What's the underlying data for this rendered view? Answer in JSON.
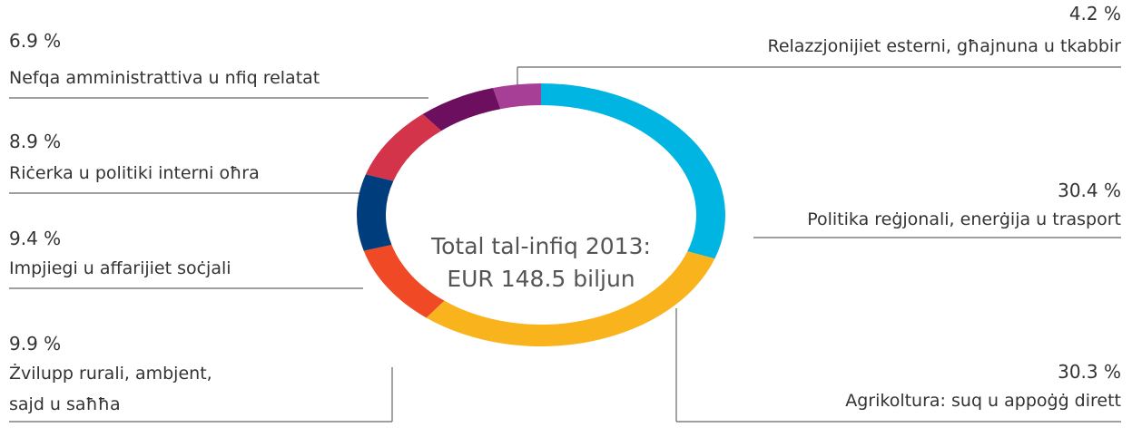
{
  "chart_data": {
    "type": "pie",
    "donut": true,
    "center_text": [
      "Total tal-infiq 2013:",
      "EUR 148.5 biljun"
    ],
    "categories": [
      [
        "Politika reġjonali, enerġija u trasport"
      ],
      [
        "Agrikoltura: suq u appoġġ dirett"
      ],
      [
        "Żvilupp rurali, ambjent,",
        "sajd u saħħa"
      ],
      [
        "Impjiegi u affarijiet soċjali"
      ],
      [
        "Riċerka u politiki interni oħra"
      ],
      [
        "Nefqa amministrattiva u nfiq relatat"
      ],
      [
        "Relazzjonijiet esterni, għajnuna u tkabbir"
      ]
    ],
    "values": [
      30.4,
      30.3,
      9.9,
      9.4,
      8.9,
      6.9,
      4.2
    ],
    "value_labels": [
      "30.4 %",
      "30.3 %",
      "9.9 %",
      "9.4 %",
      "8.9 %",
      "6.9 %",
      "4.2 %"
    ],
    "colors": [
      "#00b5e2",
      "#f9b31c",
      "#ef4a25",
      "#003d7c",
      "#d3344a",
      "#6d0f5f",
      "#a73f97"
    ]
  }
}
